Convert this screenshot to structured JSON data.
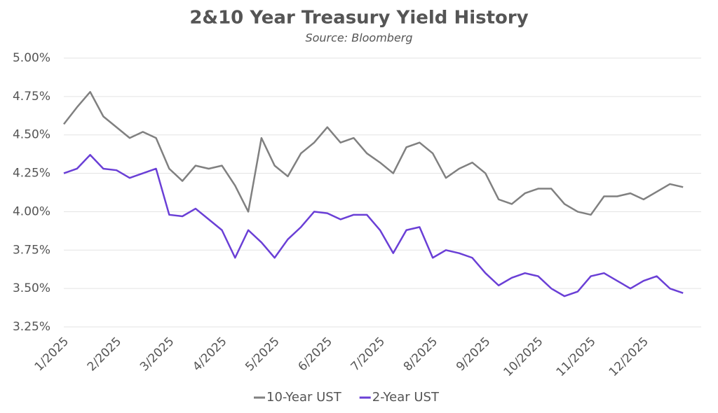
{
  "chart_data": {
    "type": "line",
    "title": "2&10 Year Treasury Yield History",
    "subtitle": "Source: Bloomberg",
    "categories": [
      "1/2025",
      null,
      null,
      null,
      "2/2025",
      null,
      null,
      null,
      "3/2025",
      null,
      null,
      null,
      "4/2025",
      null,
      null,
      null,
      "5/2025",
      null,
      null,
      null,
      "6/2025",
      null,
      null,
      null,
      "7/2025",
      null,
      null,
      null,
      "8/2025",
      null,
      null,
      null,
      "9/2025",
      null,
      null,
      null,
      "10/2025",
      null,
      null,
      null,
      "11/2025",
      null,
      null,
      null,
      "12/2025",
      null,
      null,
      null
    ],
    "series": [
      {
        "name": "10-Year UST",
        "color": "#808080",
        "values": [
          4.57,
          4.68,
          4.78,
          4.62,
          4.55,
          4.48,
          4.52,
          4.48,
          4.28,
          4.2,
          4.3,
          4.28,
          4.3,
          4.17,
          4.0,
          4.48,
          4.3,
          4.23,
          4.38,
          4.45,
          4.55,
          4.45,
          4.48,
          4.38,
          4.32,
          4.25,
          4.42,
          4.45,
          4.38,
          4.22,
          4.28,
          4.32,
          4.25,
          4.08,
          4.05,
          4.12,
          4.15,
          4.15,
          4.05,
          4.0,
          3.98,
          4.1,
          4.1,
          4.12,
          4.08,
          4.13,
          4.18,
          4.16
        ]
      },
      {
        "name": "2-Year UST",
        "color": "#6a3fd6",
        "values": [
          4.25,
          4.28,
          4.37,
          4.28,
          4.27,
          4.22,
          4.25,
          4.28,
          3.98,
          3.97,
          4.02,
          3.95,
          3.88,
          3.7,
          3.88,
          3.8,
          3.7,
          3.82,
          3.9,
          4.0,
          3.99,
          3.95,
          3.98,
          3.98,
          3.88,
          3.73,
          3.88,
          3.9,
          3.7,
          3.75,
          3.73,
          3.7,
          3.6,
          3.52,
          3.57,
          3.6,
          3.58,
          3.5,
          3.45,
          3.48,
          3.58,
          3.6,
          3.55,
          3.5,
          3.55,
          3.58,
          3.5,
          3.47
        ]
      }
    ],
    "ylim": [
      3.25,
      5.0
    ],
    "yticks": [
      {
        "value": 3.25,
        "label": "3.25%"
      },
      {
        "value": 3.5,
        "label": "3.50%"
      },
      {
        "value": 3.75,
        "label": "3.75%"
      },
      {
        "value": 4.0,
        "label": "4.00%"
      },
      {
        "value": 4.25,
        "label": "4.25%"
      },
      {
        "value": 4.5,
        "label": "4.50%"
      },
      {
        "value": 4.75,
        "label": "4.75%"
      },
      {
        "value": 5.0,
        "label": "5.00%"
      }
    ],
    "grid": true,
    "legend": "bottom"
  }
}
